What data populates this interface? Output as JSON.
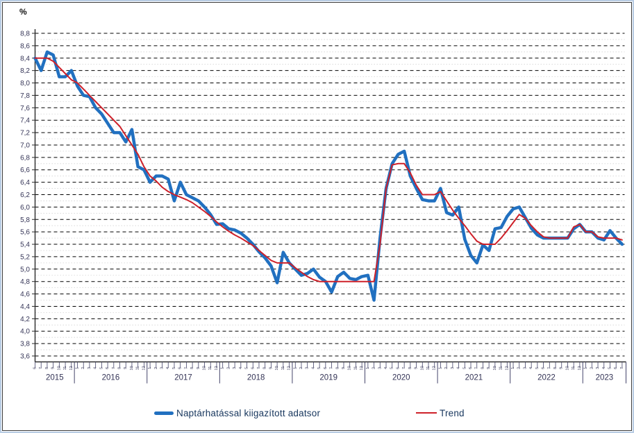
{
  "unit_label": "%",
  "chart_data": {
    "type": "line",
    "title": "",
    "ylabel": "%",
    "y_axis": {
      "min": 3.6,
      "max": 8.8,
      "major_step": 0.2,
      "minor_step": 0.1,
      "decimal_separator": ","
    },
    "grid": {
      "major": "dashed-black",
      "minor": "dotted-light-gray"
    },
    "x_years": [
      {
        "label": "2015",
        "months": [
          6,
          7,
          8,
          9,
          10,
          11,
          12
        ]
      },
      {
        "label": "2016",
        "months": [
          1,
          2,
          3,
          4,
          5,
          6,
          7,
          8,
          9,
          10,
          11,
          12
        ]
      },
      {
        "label": "2017",
        "months": [
          1,
          2,
          3,
          4,
          5,
          6,
          7,
          8,
          9,
          10,
          11,
          12
        ]
      },
      {
        "label": "2018",
        "months": [
          1,
          2,
          3,
          4,
          5,
          6,
          7,
          8,
          9,
          10,
          11,
          12
        ]
      },
      {
        "label": "2019",
        "months": [
          1,
          2,
          3,
          4,
          5,
          6,
          7,
          8,
          9,
          10,
          11,
          12
        ]
      },
      {
        "label": "2020",
        "months": [
          1,
          2,
          3,
          4,
          5,
          6,
          7,
          8,
          9,
          10,
          11,
          12
        ]
      },
      {
        "label": "2021",
        "months": [
          1,
          2,
          3,
          4,
          5,
          6,
          7,
          8,
          9,
          10,
          11,
          12
        ]
      },
      {
        "label": "2022",
        "months": [
          1,
          2,
          3,
          4,
          5,
          6,
          7,
          8,
          9,
          10,
          11,
          12
        ]
      },
      {
        "label": "2023",
        "months": [
          1,
          2,
          3,
          4,
          5,
          6,
          7
        ]
      }
    ],
    "series": [
      {
        "name": "Naptárhatással kiigazított adatsor",
        "color": "#2170C0",
        "stroke_width": 4.5,
        "values": [
          8.4,
          8.2,
          8.5,
          8.45,
          8.1,
          8.1,
          8.2,
          7.95,
          7.8,
          7.78,
          7.6,
          7.5,
          7.35,
          7.2,
          7.2,
          7.05,
          7.25,
          6.65,
          6.6,
          6.4,
          6.5,
          6.5,
          6.45,
          6.1,
          6.4,
          6.2,
          6.15,
          6.1,
          6.0,
          5.88,
          5.72,
          5.73,
          5.65,
          5.63,
          5.58,
          5.5,
          5.4,
          5.28,
          5.18,
          5.05,
          4.78,
          5.27,
          5.1,
          5.0,
          4.9,
          4.93,
          5.0,
          4.87,
          4.8,
          4.63,
          4.88,
          4.95,
          4.85,
          4.83,
          4.88,
          4.9,
          4.5,
          5.5,
          6.3,
          6.7,
          6.85,
          6.9,
          6.5,
          6.3,
          6.12,
          6.1,
          6.1,
          6.3,
          5.91,
          5.87,
          6.0,
          5.48,
          5.22,
          5.1,
          5.39,
          5.3,
          5.65,
          5.67,
          5.85,
          5.97,
          6.0,
          5.83,
          5.66,
          5.55,
          5.5,
          5.5,
          5.5,
          5.5,
          5.5,
          5.65,
          5.72,
          5.6,
          5.6,
          5.5,
          5.47,
          5.62,
          5.5,
          5.4
        ]
      },
      {
        "name": "Trend",
        "color": "#CE2029",
        "stroke_width": 2,
        "values": [
          8.4,
          8.4,
          8.4,
          8.35,
          8.25,
          8.15,
          8.05,
          8.0,
          7.9,
          7.8,
          7.7,
          7.6,
          7.5,
          7.4,
          7.3,
          7.15,
          7.0,
          6.85,
          6.65,
          6.5,
          6.42,
          6.32,
          6.25,
          6.2,
          6.16,
          6.12,
          6.07,
          6.0,
          5.93,
          5.85,
          5.76,
          5.68,
          5.61,
          5.55,
          5.5,
          5.44,
          5.38,
          5.3,
          5.22,
          5.14,
          5.1,
          5.1,
          5.1,
          5.02,
          4.95,
          4.88,
          4.83,
          4.8,
          4.8,
          4.8,
          4.8,
          4.8,
          4.8,
          4.8,
          4.8,
          4.8,
          4.8,
          5.4,
          6.3,
          6.68,
          6.7,
          6.7,
          6.55,
          6.35,
          6.2,
          6.2,
          6.2,
          6.25,
          6.1,
          5.95,
          5.82,
          5.7,
          5.57,
          5.45,
          5.4,
          5.4,
          5.4,
          5.5,
          5.62,
          5.75,
          5.88,
          5.82,
          5.7,
          5.6,
          5.52,
          5.5,
          5.5,
          5.5,
          5.5,
          5.68,
          5.72,
          5.6,
          5.6,
          5.52,
          5.5,
          5.5,
          5.5,
          5.47
        ]
      }
    ],
    "legend_position": "bottom"
  },
  "legend": {
    "adjusted_label": "Naptárhatással kiigazított adatsor",
    "trend_label": "Trend"
  },
  "colors": {
    "adjusted_line": "#2170C0",
    "trend_line": "#CE2029",
    "major_grid": "#000000",
    "minor_grid": "#d2d2d2",
    "axis": "#2a2a2a",
    "tick_text": "#333355",
    "legend_text": "#17365d",
    "outer_border": "#b9cde4",
    "inner_border": "#3a3a3a"
  }
}
